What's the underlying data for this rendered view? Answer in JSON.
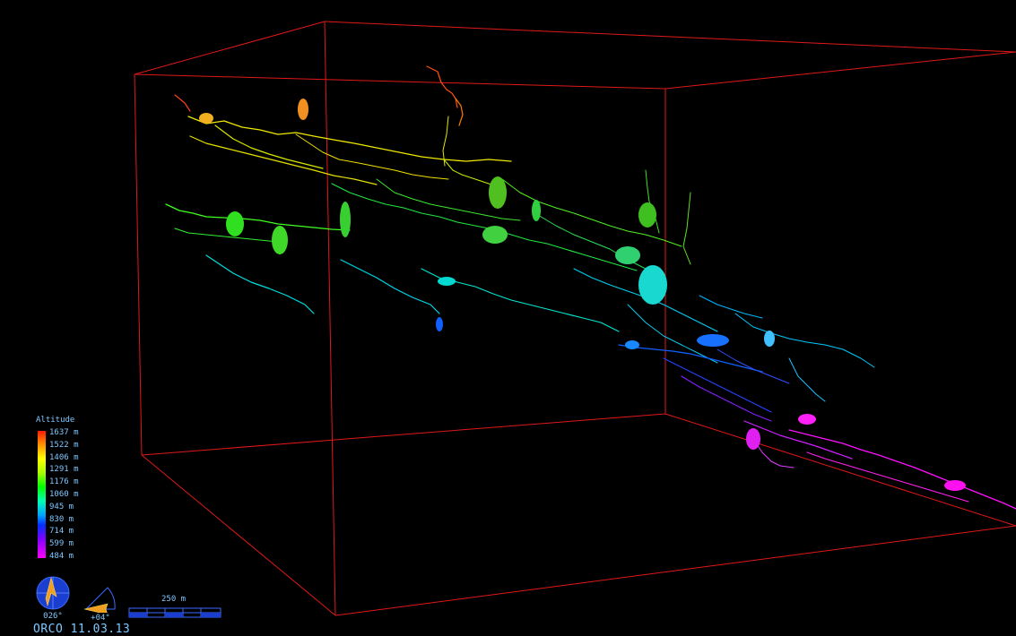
{
  "legend": {
    "title": "Altitude",
    "labels": [
      "1637 m",
      "1522 m",
      "1406 m",
      "1291 m",
      "1176 m",
      "1060 m",
      "945 m",
      "830 m",
      "714 m",
      "599 m",
      "484 m"
    ]
  },
  "compass": {
    "bearing": "026°"
  },
  "clino": {
    "angle": "+04°"
  },
  "scale": {
    "label": "250 m"
  },
  "survey": {
    "name": "ORCO 11.03.13"
  },
  "colors": {
    "box": "#e01818",
    "text": "#7ec8ff",
    "background": "#000000"
  }
}
